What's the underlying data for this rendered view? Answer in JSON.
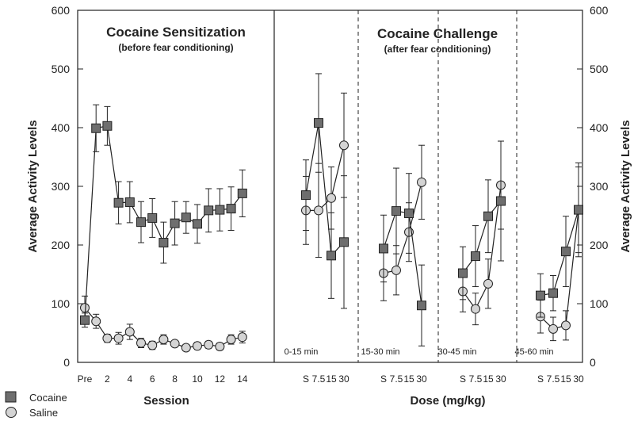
{
  "chart_data": {
    "type": "line",
    "y_axis": {
      "min": 0,
      "max": 600,
      "ticks": [
        0,
        100,
        200,
        300,
        400,
        500,
        600
      ],
      "label": "Average Activity Levels"
    },
    "legend": [
      {
        "name": "Cocaine",
        "marker": "square",
        "color": "#6e6e6e"
      },
      {
        "name": "Saline",
        "marker": "circle",
        "color": "#d4d4d4"
      }
    ],
    "sensitization": {
      "title": "Cocaine Sensitization",
      "subtitle": "(before fear conditioning)",
      "xlabel": "Session",
      "tick_labels": [
        "Pre",
        "2",
        "4",
        "6",
        "8",
        "10",
        "12",
        "14"
      ],
      "sessions": [
        "Pre",
        "1",
        "2",
        "3",
        "4",
        "5",
        "6",
        "7",
        "8",
        "9",
        "10",
        "11",
        "12",
        "13",
        "14"
      ],
      "series": [
        {
          "name": "Cocaine",
          "values": [
            72,
            399,
            403,
            272,
            273,
            239,
            246,
            204,
            237,
            247,
            236,
            259,
            260,
            262,
            288
          ],
          "errors": [
            12,
            40,
            33,
            36,
            35,
            35,
            33,
            35,
            37,
            27,
            33,
            37,
            36,
            37,
            40
          ]
        },
        {
          "name": "Saline",
          "values": [
            93,
            70,
            41,
            41,
            52,
            33,
            29,
            39,
            32,
            25,
            28,
            30,
            27,
            39,
            43
          ],
          "errors": [
            20,
            12,
            7,
            10,
            13,
            8,
            7,
            8,
            5,
            5,
            6,
            6,
            6,
            8,
            10
          ]
        }
      ]
    },
    "challenge": {
      "title": "Cocaine Challenge",
      "subtitle": "(after fear conditioning)",
      "xlabel": "Dose (mg/kg)",
      "doses": [
        "S",
        "7.5",
        "15",
        "30"
      ],
      "periods": [
        {
          "label": "0-15 min",
          "cocaine": [
            285,
            408,
            182,
            205
          ],
          "cocaine_err": [
            60,
            84,
            73,
            113
          ],
          "saline": [
            259,
            259,
            280,
            370
          ],
          "saline_err": [
            58,
            80,
            53,
            89
          ]
        },
        {
          "label": "15-30 min",
          "cocaine": [
            194,
            258,
            254,
            97
          ],
          "cocaine_err": [
            57,
            73,
            68,
            69
          ],
          "saline": [
            152,
            157,
            222,
            307
          ],
          "saline_err": [
            47,
            42,
            50,
            63
          ]
        },
        {
          "label": "30-45 min",
          "cocaine": [
            152,
            181,
            249,
            275
          ],
          "cocaine_err": [
            45,
            52,
            62,
            102
          ],
          "saline": [
            121,
            91,
            134,
            302
          ],
          "saline_err": [
            35,
            27,
            42,
            75
          ]
        },
        {
          "label": "45-60 min",
          "cocaine": [
            114,
            118,
            189,
            260
          ],
          "cocaine_err": [
            37,
            30,
            60,
            80
          ],
          "saline": [
            78,
            57,
            63,
            260
          ],
          "saline_err": [
            28,
            20,
            25,
            73
          ]
        }
      ]
    }
  }
}
